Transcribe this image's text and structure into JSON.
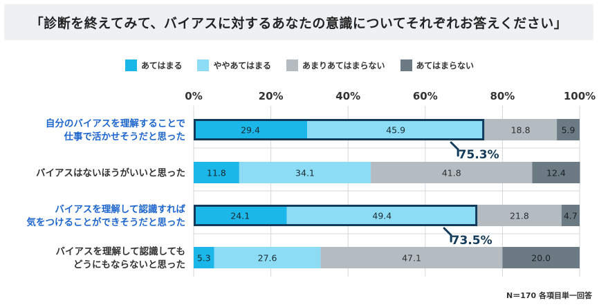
{
  "title": "「診断を終えてみて、バイアスに対するあなたの意識についてそれぞれお答えください」",
  "note": "N＝170 各項目単一回答",
  "colors": {
    "c1": "#1bb7e8",
    "c2": "#8ddcf5",
    "c3": "#b5bcc1",
    "c4": "#6c7a84",
    "highlight_label": "#1e66cf",
    "normal_label": "#333333"
  },
  "chart_data": {
    "type": "bar",
    "orientation": "horizontal",
    "stacked": true,
    "xlim": [
      0,
      100
    ],
    "ticks": [
      "0%",
      "20%",
      "40%",
      "60%",
      "80%",
      "100%"
    ],
    "legend": [
      "あてはまる",
      "ややあてはまる",
      "あまりあてはまらない",
      "あてはまらない"
    ],
    "categories": [
      {
        "lines": [
          "自分のバイアスを理解することで",
          "仕事で活かせそうだと思った"
        ],
        "highlight": true,
        "total_label": "75.3%"
      },
      {
        "lines": [
          "バイアスはないほうがいいと思った"
        ],
        "highlight": false,
        "total_label": ""
      },
      {
        "lines": [
          "バイアスを理解して認識すれば",
          "気をつけることができそうだと思った"
        ],
        "highlight": true,
        "total_label": "73.5%"
      },
      {
        "lines": [
          "バイアスを理解して認識しても",
          "どうにもならないと思った"
        ],
        "highlight": false,
        "total_label": ""
      }
    ],
    "series": [
      {
        "name": "あてはまる",
        "values": [
          "29.4",
          "11.8",
          "24.1",
          "5.3"
        ]
      },
      {
        "name": "ややあてはまる",
        "values": [
          "45.9",
          "34.1",
          "49.4",
          "27.6"
        ]
      },
      {
        "name": "あまりあてはまらない",
        "values": [
          "18.8",
          "41.8",
          "21.8",
          "47.1"
        ]
      },
      {
        "name": "あてはまらない",
        "values": [
          "5.9",
          "12.4",
          "4.7",
          "20.0"
        ]
      }
    ]
  }
}
